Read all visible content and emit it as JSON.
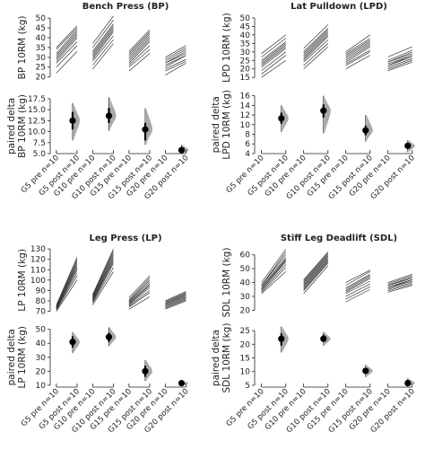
{
  "chart_data": [
    {
      "type": "estimation-plot",
      "title": "Bench Press (BP)",
      "ylabel_top": "BP 10RM (kg)",
      "ylabel_bottom": [
        "paired delta",
        "BP 10RM (kg)"
      ],
      "top_yticks": [
        20,
        25,
        30,
        35,
        40,
        45,
        50
      ],
      "top_ylim": [
        18,
        51
      ],
      "bottom_yticks": [
        5.0,
        7.5,
        10.0,
        12.5,
        15.0,
        17.5
      ],
      "bottom_ylim": [
        4.8,
        18.5
      ],
      "x_labels": [
        "G5 pre n=10",
        "G5 post n=10",
        "G10 pre n=10",
        "G10 post n=10",
        "G15 pre n=10",
        "G15 post n=10",
        "G20 pre n=10",
        "G20 post n=10"
      ],
      "groups": [
        {
          "name": "G5",
          "pre": [
            22,
            25,
            27,
            28,
            29,
            30,
            31,
            32,
            34,
            35
          ],
          "post": [
            33,
            36,
            38,
            40,
            41,
            42,
            43,
            44,
            45,
            46
          ],
          "delta_mean": 12.5,
          "ci": [
            10.5,
            14.5
          ],
          "range": [
            8.0,
            16.5
          ]
        },
        {
          "name": "G10",
          "pre": [
            24,
            26,
            28,
            29,
            30,
            31,
            32,
            33,
            35,
            37
          ],
          "post": [
            37,
            39,
            41,
            43,
            44,
            45,
            46,
            47,
            49,
            51
          ],
          "delta_mean": 13.6,
          "ci": [
            12.0,
            15.4
          ],
          "range": [
            10.2,
            17.8
          ]
        },
        {
          "name": "G15",
          "pre": [
            23,
            25,
            26,
            27,
            28,
            29,
            30,
            31,
            32,
            33
          ],
          "post": [
            32,
            34,
            36,
            38,
            39,
            40,
            41,
            42,
            43,
            44
          ],
          "delta_mean": 10.5,
          "ci": [
            8.0,
            12.0
          ],
          "range": [
            7.0,
            15.3
          ]
        },
        {
          "name": "G20",
          "pre": [
            21,
            23,
            24,
            25,
            26,
            27,
            27,
            28,
            29,
            30
          ],
          "post": [
            27,
            28,
            29,
            31,
            31,
            32,
            33,
            34,
            35,
            36
          ],
          "delta_mean": 5.8,
          "ci": [
            5.2,
            6.4
          ],
          "range": [
            4.9,
            7.0
          ]
        }
      ]
    },
    {
      "type": "estimation-plot",
      "title": "Lat Pulldown (LPD)",
      "ylabel_top": "LPD 10RM (kg)",
      "ylabel_bottom": [
        "paired delta",
        "LPD 10RM (kg)"
      ],
      "top_yticks": [
        15,
        20,
        25,
        30,
        35,
        40,
        45,
        50
      ],
      "top_ylim": [
        13,
        51
      ],
      "bottom_yticks": [
        4,
        6,
        8,
        10,
        12,
        14,
        16
      ],
      "bottom_ylim": [
        3.8,
        16.3
      ],
      "x_labels": [
        "G5 pre n=10",
        "G5 post n=10",
        "G10 pre n=10",
        "G10 post n=10",
        "G15 pre n=10",
        "G15 post n=10",
        "G20 pre n=10",
        "G20 post n=10"
      ],
      "groups": [
        {
          "name": "G5",
          "pre": [
            15,
            17,
            19,
            21,
            22,
            23,
            24,
            25,
            27,
            29
          ],
          "post": [
            25,
            28,
            30,
            32,
            33,
            34,
            35,
            36,
            38,
            40
          ],
          "delta_mean": 11.3,
          "ci": [
            10.2,
            12.5
          ],
          "range": [
            8.5,
            14.0
          ]
        },
        {
          "name": "G10",
          "pre": [
            20,
            22,
            24,
            25,
            26,
            27,
            28,
            29,
            30,
            32
          ],
          "post": [
            33,
            35,
            37,
            39,
            40,
            41,
            42,
            43,
            44,
            46
          ],
          "delta_mean": 12.9,
          "ci": [
            11.5,
            14.2
          ],
          "range": [
            8.2,
            16.0
          ]
        },
        {
          "name": "G15",
          "pre": [
            20,
            22,
            23,
            24,
            25,
            26,
            27,
            28,
            29,
            30
          ],
          "post": [
            28,
            30,
            31,
            33,
            34,
            35,
            36,
            37,
            38,
            40
          ],
          "delta_mean": 8.8,
          "ci": [
            7.8,
            9.8
          ],
          "range": [
            6.5,
            12.0
          ]
        },
        {
          "name": "G20",
          "pre": [
            19,
            20,
            21,
            22,
            22,
            23,
            24,
            24,
            25,
            27
          ],
          "post": [
            24,
            25,
            26,
            27,
            28,
            28,
            29,
            30,
            31,
            33
          ],
          "delta_mean": 5.6,
          "ci": [
            5.0,
            6.2
          ],
          "range": [
            4.3,
            6.8
          ]
        }
      ]
    },
    {
      "type": "estimation-plot",
      "title": "Leg Press (LP)",
      "ylabel_top": "LP 10RM (kg)",
      "ylabel_bottom": [
        "paired delta",
        "LP 10RM (kg)"
      ],
      "top_yticks": [
        70,
        80,
        90,
        100,
        110,
        120,
        130
      ],
      "top_ylim": [
        67,
        131
      ],
      "bottom_yticks": [
        10,
        20,
        30,
        40,
        50
      ],
      "bottom_ylim": [
        8,
        53
      ],
      "x_labels": [
        "G5 pre n=10",
        "G5 post n=10",
        "G10 pre n=10",
        "G10 post n=10",
        "G15 pre n=10",
        "G15 post n=10",
        "G20 pre n=10",
        "G20 post n=10"
      ],
      "groups": [
        {
          "name": "G5",
          "pre": [
            70,
            71,
            72,
            72,
            73,
            73,
            74,
            74,
            75,
            76
          ],
          "post": [
            100,
            104,
            107,
            110,
            112,
            114,
            116,
            118,
            120,
            122
          ],
          "delta_mean": 41.0,
          "ci": [
            37.0,
            45.0
          ],
          "range": [
            33.0,
            48.0
          ]
        },
        {
          "name": "G10",
          "pre": [
            76,
            78,
            79,
            80,
            81,
            82,
            83,
            84,
            85,
            86
          ],
          "post": [
            108,
            112,
            116,
            118,
            120,
            122,
            124,
            126,
            128,
            130
          ],
          "delta_mean": 44.5,
          "ci": [
            41.0,
            47.5
          ],
          "range": [
            38.0,
            51.5
          ]
        },
        {
          "name": "G15",
          "pre": [
            72,
            74,
            75,
            76,
            77,
            78,
            79,
            80,
            81,
            83
          ],
          "post": [
            84,
            88,
            90,
            93,
            95,
            96,
            98,
            100,
            102,
            104
          ],
          "delta_mean": 20.0,
          "ci": [
            16.0,
            24.0
          ],
          "range": [
            13.0,
            28.0
          ]
        },
        {
          "name": "G20",
          "pre": [
            72,
            73,
            74,
            75,
            76,
            77,
            77,
            78,
            79,
            80
          ],
          "post": [
            80,
            81,
            82,
            83,
            84,
            85,
            86,
            87,
            88,
            89
          ],
          "delta_mean": 11.5,
          "ci": [
            10.5,
            12.5
          ],
          "range": [
            9.5,
            13.0
          ]
        }
      ]
    },
    {
      "type": "estimation-plot",
      "title": "Stiff Leg Deadlift (SDL)",
      "ylabel_top": "SDL 10RM (kg)",
      "ylabel_bottom": [
        "paired delta",
        "SDL 10RM (kg)"
      ],
      "top_yticks": [
        20,
        30,
        40,
        50,
        60
      ],
      "top_ylim": [
        17,
        65
      ],
      "bottom_yticks": [
        5,
        10,
        15,
        20,
        25
      ],
      "bottom_ylim": [
        4,
        27
      ],
      "x_labels": [
        "G5 pre n=10",
        "G5 post n=10",
        "G10 pre n=10",
        "G10 post n=10",
        "G15 pre n=10",
        "G15 post n=10",
        "G20 pre n=10",
        "G20 post n=10"
      ],
      "groups": [
        {
          "name": "G5",
          "pre": [
            32,
            33,
            34,
            35,
            35,
            36,
            37,
            38,
            38,
            40
          ],
          "post": [
            48,
            51,
            53,
            55,
            56,
            57,
            58,
            60,
            62,
            64
          ],
          "delta_mean": 22.0,
          "ci": [
            19.5,
            24.0
          ],
          "range": [
            17.0,
            26.5
          ]
        },
        {
          "name": "G10",
          "pre": [
            32,
            34,
            35,
            36,
            37,
            38,
            39,
            40,
            41,
            42
          ],
          "post": [
            52,
            54,
            55,
            56,
            57,
            58,
            59,
            60,
            61,
            62
          ],
          "delta_mean": 22.0,
          "ci": [
            21.0,
            23.5
          ],
          "range": [
            19.5,
            24.5
          ]
        },
        {
          "name": "G15",
          "pre": [
            26,
            28,
            30,
            32,
            33,
            34,
            35,
            36,
            38,
            40
          ],
          "post": [
            35,
            37,
            39,
            41,
            43,
            44,
            45,
            46,
            48,
            49
          ],
          "delta_mean": 10.3,
          "ci": [
            9.2,
            11.4
          ],
          "range": [
            8.0,
            12.5
          ]
        },
        {
          "name": "G20",
          "pre": [
            33,
            34,
            35,
            36,
            36,
            37,
            38,
            38,
            39,
            40
          ],
          "post": [
            38,
            39,
            40,
            41,
            42,
            42,
            43,
            44,
            45,
            46
          ],
          "delta_mean": 5.8,
          "ci": [
            5.2,
            6.6
          ],
          "range": [
            4.5,
            7.5
          ]
        }
      ]
    }
  ]
}
